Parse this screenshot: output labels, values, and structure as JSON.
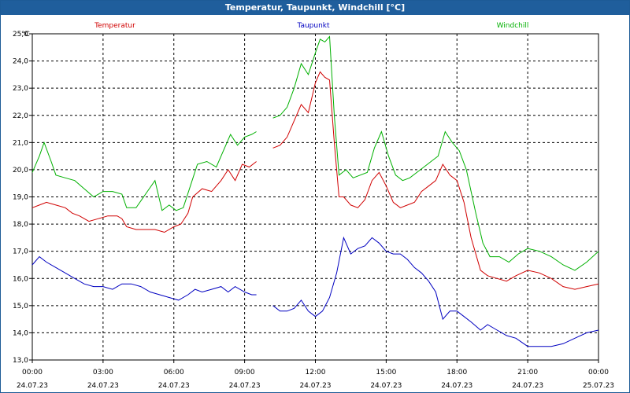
{
  "window": {
    "title": "Temperatur, Taupunkt, Windchill [°C]"
  },
  "chart_data": {
    "type": "line",
    "title": "Temperatur, Taupunkt, Windchill [°C]",
    "ylabel": "°C",
    "ylim": [
      13.0,
      25.0
    ],
    "xlim": [
      0,
      24
    ],
    "grid": true,
    "legend_position": "top",
    "y_ticks": [
      "13,0",
      "14,0",
      "15,0",
      "16,0",
      "17,0",
      "18,0",
      "19,0",
      "20,0",
      "21,0",
      "22,0",
      "23,0",
      "24,0",
      "25,0"
    ],
    "x_ticks": [
      {
        "time": "00:00",
        "date": "24.07.23"
      },
      {
        "time": "03:00",
        "date": "24.07.23"
      },
      {
        "time": "06:00",
        "date": "24.07.23"
      },
      {
        "time": "09:00",
        "date": "24.07.23"
      },
      {
        "time": "12:00",
        "date": "24.07.23"
      },
      {
        "time": "15:00",
        "date": "24.07.23"
      },
      {
        "time": "18:00",
        "date": "24.07.23"
      },
      {
        "time": "21:00",
        "date": "24.07.23"
      },
      {
        "time": "00:00",
        "date": "25.07.23"
      }
    ],
    "series": [
      {
        "name": "Temperatur",
        "color": "#d00000",
        "segments": [
          [
            [
              0,
              18.6
            ],
            [
              0.3,
              18.7
            ],
            [
              0.6,
              18.8
            ],
            [
              1,
              18.7
            ],
            [
              1.4,
              18.6
            ],
            [
              1.7,
              18.4
            ],
            [
              2,
              18.3
            ],
            [
              2.4,
              18.1
            ],
            [
              2.8,
              18.2
            ],
            [
              3.2,
              18.3
            ],
            [
              3.6,
              18.3
            ],
            [
              3.8,
              18.2
            ],
            [
              4.0,
              17.9
            ],
            [
              4.4,
              17.8
            ],
            [
              4.8,
              17.8
            ],
            [
              5.2,
              17.8
            ],
            [
              5.6,
              17.7
            ],
            [
              6.0,
              17.9
            ],
            [
              6.3,
              18.0
            ],
            [
              6.6,
              18.4
            ],
            [
              6.8,
              19.0
            ],
            [
              7.2,
              19.3
            ],
            [
              7.6,
              19.2
            ],
            [
              8.0,
              19.6
            ],
            [
              8.3,
              20.0
            ],
            [
              8.6,
              19.6
            ],
            [
              8.9,
              20.2
            ],
            [
              9.2,
              20.1
            ],
            [
              9.5,
              20.3
            ]
          ],
          [
            [
              10.2,
              20.8
            ],
            [
              10.5,
              20.9
            ],
            [
              10.8,
              21.2
            ],
            [
              11.1,
              21.8
            ],
            [
              11.4,
              22.4
            ],
            [
              11.7,
              22.1
            ],
            [
              12.0,
              23.2
            ],
            [
              12.2,
              23.6
            ],
            [
              12.4,
              23.4
            ],
            [
              12.6,
              23.3
            ],
            [
              12.8,
              21.0
            ],
            [
              13.0,
              19.0
            ],
            [
              13.2,
              19.0
            ],
            [
              13.5,
              18.7
            ],
            [
              13.8,
              18.6
            ],
            [
              14.1,
              18.9
            ],
            [
              14.4,
              19.6
            ],
            [
              14.7,
              19.9
            ],
            [
              15.0,
              19.4
            ],
            [
              15.3,
              18.8
            ],
            [
              15.6,
              18.6
            ],
            [
              15.9,
              18.7
            ],
            [
              16.2,
              18.8
            ],
            [
              16.5,
              19.2
            ],
            [
              16.8,
              19.4
            ],
            [
              17.1,
              19.6
            ],
            [
              17.4,
              20.2
            ],
            [
              17.7,
              19.8
            ],
            [
              18.0,
              19.6
            ],
            [
              18.3,
              18.8
            ],
            [
              18.6,
              17.5
            ],
            [
              19.0,
              16.3
            ],
            [
              19.3,
              16.1
            ],
            [
              19.7,
              16.0
            ],
            [
              20.1,
              15.9
            ],
            [
              20.5,
              16.1
            ],
            [
              21.0,
              16.3
            ],
            [
              21.5,
              16.2
            ],
            [
              22.0,
              16.0
            ],
            [
              22.5,
              15.7
            ],
            [
              23.0,
              15.6
            ],
            [
              23.5,
              15.7
            ],
            [
              24.0,
              15.8
            ]
          ]
        ]
      },
      {
        "name": "Taupunkt",
        "color": "#0000c0",
        "segments": [
          [
            [
              0,
              16.5
            ],
            [
              0.3,
              16.8
            ],
            [
              0.6,
              16.6
            ],
            [
              1,
              16.4
            ],
            [
              1.4,
              16.2
            ],
            [
              1.8,
              16.0
            ],
            [
              2.2,
              15.8
            ],
            [
              2.6,
              15.7
            ],
            [
              3.0,
              15.7
            ],
            [
              3.4,
              15.6
            ],
            [
              3.8,
              15.8
            ],
            [
              4.2,
              15.8
            ],
            [
              4.6,
              15.7
            ],
            [
              5.0,
              15.5
            ],
            [
              5.4,
              15.4
            ],
            [
              5.8,
              15.3
            ],
            [
              6.2,
              15.2
            ],
            [
              6.6,
              15.4
            ],
            [
              6.9,
              15.6
            ],
            [
              7.2,
              15.5
            ],
            [
              7.6,
              15.6
            ],
            [
              8.0,
              15.7
            ],
            [
              8.3,
              15.5
            ],
            [
              8.6,
              15.7
            ],
            [
              9.0,
              15.5
            ],
            [
              9.3,
              15.4
            ],
            [
              9.5,
              15.4
            ]
          ],
          [
            [
              10.2,
              15.0
            ],
            [
              10.5,
              14.8
            ],
            [
              10.8,
              14.8
            ],
            [
              11.1,
              14.9
            ],
            [
              11.4,
              15.2
            ],
            [
              11.7,
              14.8
            ],
            [
              12.0,
              14.6
            ],
            [
              12.3,
              14.8
            ],
            [
              12.6,
              15.3
            ],
            [
              12.9,
              16.2
            ],
            [
              13.2,
              17.5
            ],
            [
              13.5,
              16.9
            ],
            [
              13.8,
              17.1
            ],
            [
              14.1,
              17.2
            ],
            [
              14.4,
              17.5
            ],
            [
              14.7,
              17.3
            ],
            [
              15.0,
              17.0
            ],
            [
              15.3,
              16.9
            ],
            [
              15.6,
              16.9
            ],
            [
              15.9,
              16.7
            ],
            [
              16.2,
              16.4
            ],
            [
              16.5,
              16.2
            ],
            [
              16.8,
              15.9
            ],
            [
              17.1,
              15.5
            ],
            [
              17.4,
              14.5
            ],
            [
              17.7,
              14.8
            ],
            [
              18.0,
              14.8
            ],
            [
              18.3,
              14.6
            ],
            [
              18.6,
              14.4
            ],
            [
              19.0,
              14.1
            ],
            [
              19.3,
              14.3
            ],
            [
              19.7,
              14.1
            ],
            [
              20.1,
              13.9
            ],
            [
              20.5,
              13.8
            ],
            [
              21.0,
              13.5
            ],
            [
              21.5,
              13.5
            ],
            [
              22.0,
              13.5
            ],
            [
              22.5,
              13.6
            ],
            [
              23.0,
              13.8
            ],
            [
              23.5,
              14.0
            ],
            [
              24.0,
              14.1
            ]
          ]
        ]
      },
      {
        "name": "Windchill",
        "color": "#00b000",
        "segments": [
          [
            [
              0,
              19.9
            ],
            [
              0.3,
              20.5
            ],
            [
              0.5,
              21.0
            ],
            [
              0.8,
              20.3
            ],
            [
              1.0,
              19.8
            ],
            [
              1.4,
              19.7
            ],
            [
              1.8,
              19.6
            ],
            [
              2.2,
              19.3
            ],
            [
              2.6,
              19.0
            ],
            [
              3.0,
              19.2
            ],
            [
              3.4,
              19.2
            ],
            [
              3.8,
              19.1
            ],
            [
              4.0,
              18.6
            ],
            [
              4.4,
              18.6
            ],
            [
              4.8,
              19.1
            ],
            [
              5.2,
              19.6
            ],
            [
              5.5,
              18.5
            ],
            [
              5.8,
              18.7
            ],
            [
              6.1,
              18.5
            ],
            [
              6.4,
              18.6
            ],
            [
              6.7,
              19.4
            ],
            [
              7.0,
              20.2
            ],
            [
              7.4,
              20.3
            ],
            [
              7.8,
              20.1
            ],
            [
              8.1,
              20.7
            ],
            [
              8.4,
              21.3
            ],
            [
              8.7,
              20.9
            ],
            [
              9.0,
              21.2
            ],
            [
              9.3,
              21.3
            ],
            [
              9.5,
              21.4
            ]
          ],
          [
            [
              10.2,
              21.9
            ],
            [
              10.5,
              22.0
            ],
            [
              10.8,
              22.3
            ],
            [
              11.1,
              23.0
            ],
            [
              11.4,
              23.9
            ],
            [
              11.7,
              23.5
            ],
            [
              12.0,
              24.3
            ],
            [
              12.2,
              24.8
            ],
            [
              12.4,
              24.7
            ],
            [
              12.6,
              24.9
            ],
            [
              12.8,
              22.0
            ],
            [
              13.0,
              19.8
            ],
            [
              13.3,
              20.0
            ],
            [
              13.6,
              19.7
            ],
            [
              13.9,
              19.8
            ],
            [
              14.2,
              19.9
            ],
            [
              14.5,
              20.8
            ],
            [
              14.8,
              21.4
            ],
            [
              15.1,
              20.5
            ],
            [
              15.4,
              19.8
            ],
            [
              15.7,
              19.6
            ],
            [
              16.0,
              19.7
            ],
            [
              16.3,
              19.9
            ],
            [
              16.6,
              20.1
            ],
            [
              16.9,
              20.3
            ],
            [
              17.2,
              20.5
            ],
            [
              17.5,
              21.4
            ],
            [
              17.8,
              21.0
            ],
            [
              18.1,
              20.7
            ],
            [
              18.4,
              20.0
            ],
            [
              18.8,
              18.4
            ],
            [
              19.1,
              17.3
            ],
            [
              19.4,
              16.8
            ],
            [
              19.8,
              16.8
            ],
            [
              20.2,
              16.6
            ],
            [
              20.6,
              16.9
            ],
            [
              21.0,
              17.1
            ],
            [
              21.5,
              17.0
            ],
            [
              22.0,
              16.8
            ],
            [
              22.5,
              16.5
            ],
            [
              23.0,
              16.3
            ],
            [
              23.5,
              16.6
            ],
            [
              24.0,
              17.0
            ]
          ]
        ]
      }
    ]
  }
}
